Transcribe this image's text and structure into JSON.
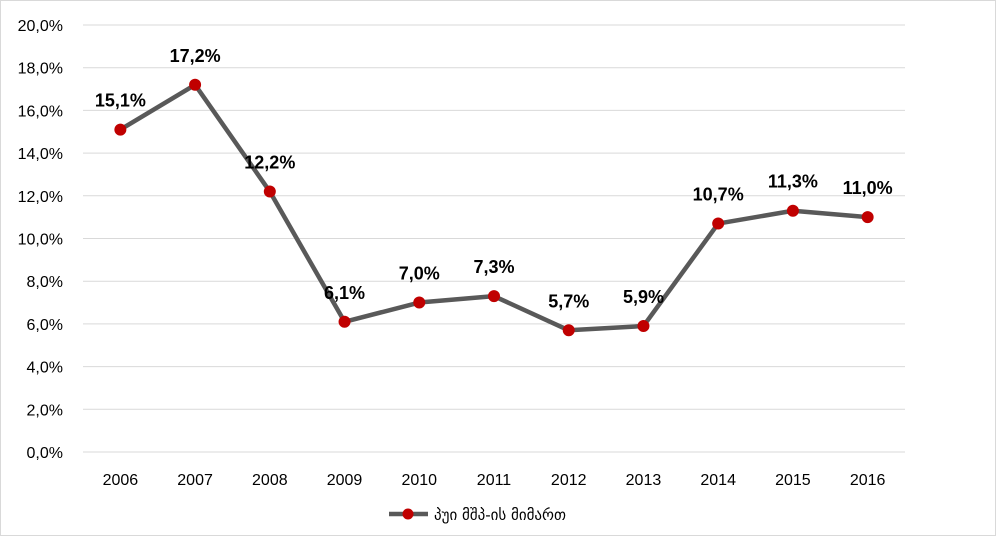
{
  "chart_data": {
    "type": "line",
    "categories": [
      "2006",
      "2007",
      "2008",
      "2009",
      "2010",
      "2011",
      "2012",
      "2013",
      "2014",
      "2015",
      "2016"
    ],
    "series": [
      {
        "name": "პუი მშპ-ის მიმართ",
        "values": [
          15.1,
          17.2,
          12.2,
          6.1,
          7.0,
          7.3,
          5.7,
          5.9,
          10.7,
          11.3,
          11.0
        ],
        "labels": [
          "15,1%",
          "17,2%",
          "12,2%",
          "6,1%",
          "7,0%",
          "7,3%",
          "5,7%",
          "5,9%",
          "10,7%",
          "11,3%",
          "11,0%"
        ],
        "line_color": "#595959",
        "marker_color": "#c00000"
      }
    ],
    "y_ticks": [
      "0,0%",
      "2,0%",
      "4,0%",
      "6,0%",
      "8,0%",
      "10,0%",
      "12,0%",
      "14,0%",
      "16,0%",
      "18,0%",
      "20,0%"
    ],
    "ylim": [
      0,
      20
    ],
    "grid": true,
    "legend_position": "bottom",
    "gridline_color": "#d9d9d9"
  }
}
